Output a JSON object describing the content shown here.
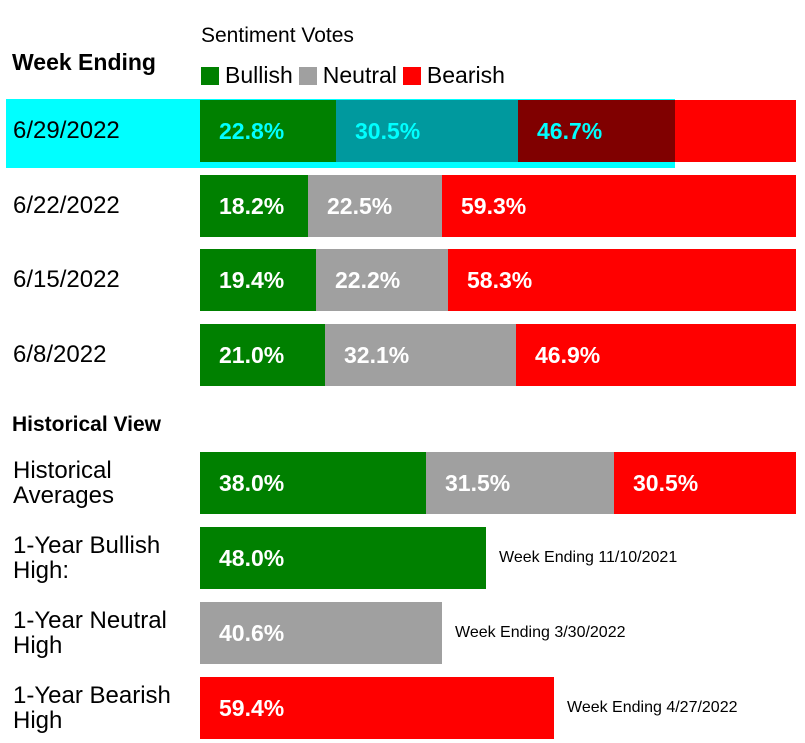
{
  "chart_data": {
    "type": "bar",
    "orientation": "horizontal-stacked",
    "legend_title": "Sentiment Votes",
    "legend": [
      {
        "name": "Bullish",
        "color": "#008000"
      },
      {
        "name": "Neutral",
        "color": "#a0a0a0"
      },
      {
        "name": "Bearish",
        "color": "#ff0000"
      }
    ],
    "week_heading": "Week Ending",
    "weeks": [
      {
        "label": "6/29/2022",
        "bullish": 22.8,
        "neutral": 30.5,
        "bearish": 46.7,
        "highlighted": true
      },
      {
        "label": "6/22/2022",
        "bullish": 18.2,
        "neutral": 22.5,
        "bearish": 59.3
      },
      {
        "label": "6/15/2022",
        "bullish": 19.4,
        "neutral": 22.2,
        "bearish": 58.3
      },
      {
        "label": "6/8/2022",
        "bullish": 21.0,
        "neutral": 32.1,
        "bearish": 46.9
      }
    ],
    "historical_heading": "Historical View",
    "historical": [
      {
        "label": "Historical Averages",
        "bullish": 38.0,
        "neutral": 31.5,
        "bearish": 30.5
      },
      {
        "label": "1-Year Bullish High:",
        "value": 48.0,
        "kind": "bullish",
        "note": "Week Ending 11/10/2021"
      },
      {
        "label": "1-Year Neutral High",
        "value": 40.6,
        "kind": "neutral",
        "note": "Week Ending 3/30/2022"
      },
      {
        "label": "1-Year Bearish High",
        "value": 59.4,
        "kind": "bearish",
        "note": "Week Ending 4/27/2022"
      }
    ],
    "highlight_colors": {
      "bullish": "#008000",
      "neutral": "#00999e",
      "bearish": "#800000",
      "text": "#00ffff"
    }
  }
}
